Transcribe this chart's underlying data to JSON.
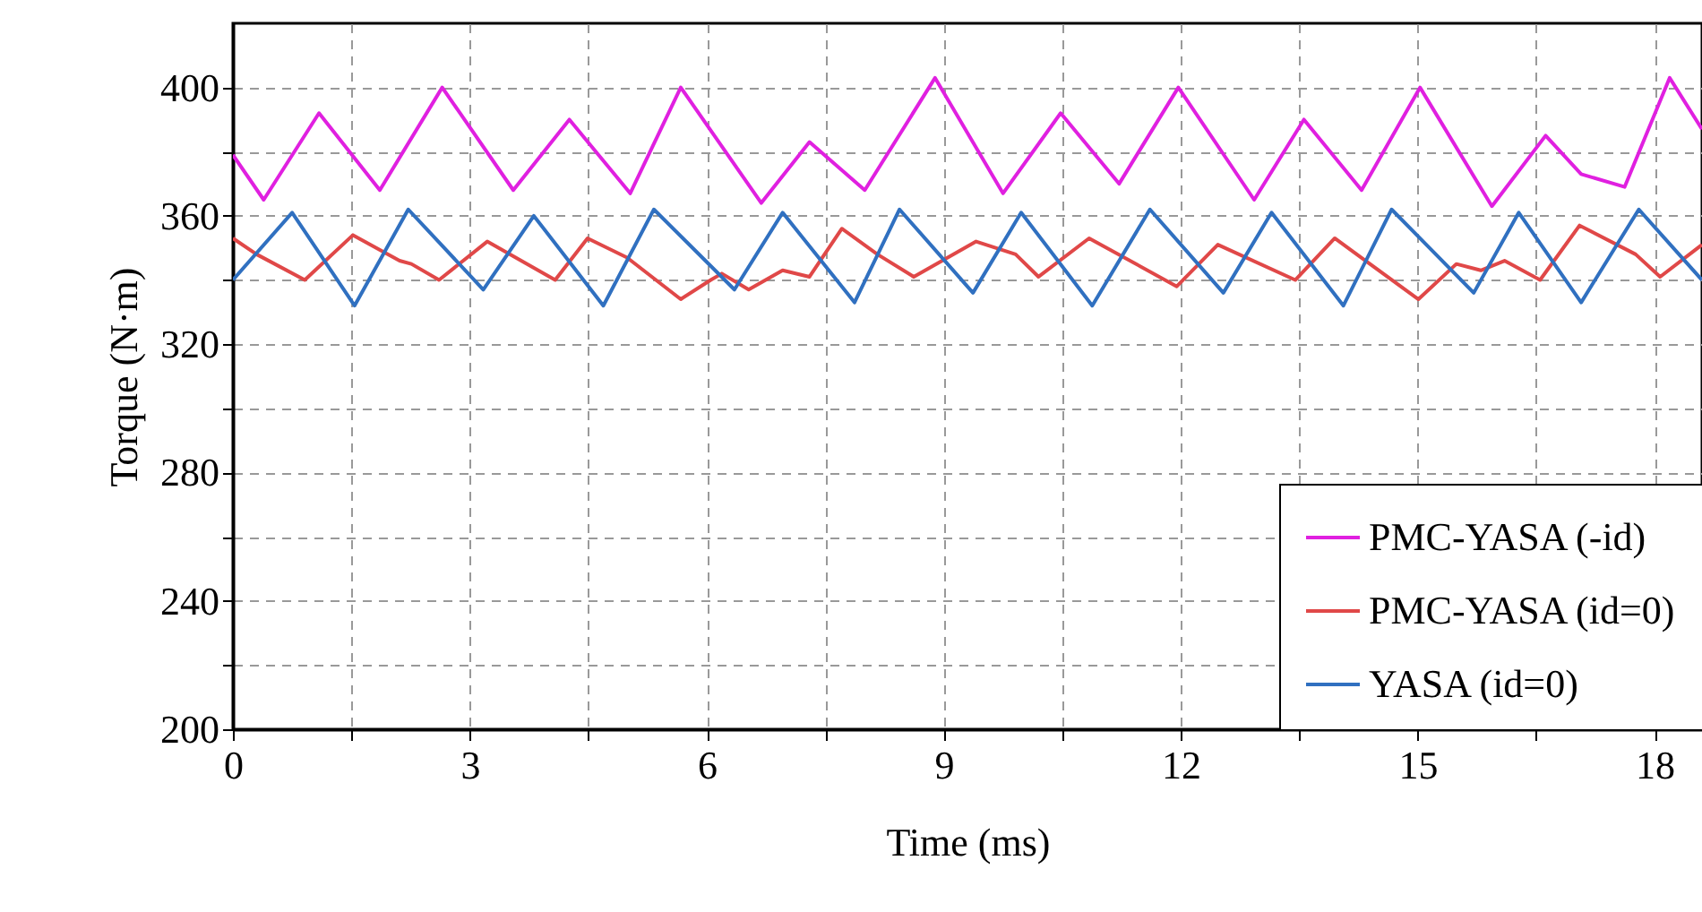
{
  "chart_data": {
    "type": "line",
    "xlabel": "Time (ms)",
    "ylabel": "Torque (N·m)",
    "xlim": [
      0,
      18.6
    ],
    "ylim": [
      200,
      420
    ],
    "xticks": [
      0,
      {
        "value": 1.5,
        "label": null
      },
      3,
      {
        "value": 4.5,
        "label": null
      },
      6,
      {
        "value": 7.5,
        "label": null
      },
      9,
      {
        "value": 10.5,
        "label": null
      },
      12,
      {
        "value": 13.5,
        "label": null
      },
      15,
      {
        "value": 16.5,
        "label": null
      },
      18
    ],
    "yticks": [
      200,
      {
        "value": 220,
        "label": null
      },
      240,
      {
        "value": 260,
        "label": null
      },
      280,
      {
        "value": 300,
        "label": null
      },
      320,
      {
        "value": 340,
        "label": null
      },
      360,
      {
        "value": 380,
        "label": null
      },
      400
    ],
    "grid": true,
    "legend": "bottom right",
    "line_style": "solid",
    "series": [
      {
        "name": "PMC-YASA (-id)",
        "color": "#e020e0",
        "x": [
          0,
          0.39,
          1.09,
          1.86,
          2.65,
          3.55,
          4.26,
          5.03,
          5.67,
          6.69,
          7.3,
          8.0,
          8.89,
          9.75,
          10.48,
          11.22,
          11.97,
          12.93,
          13.56,
          14.29,
          15.03,
          15.94,
          16.62,
          17.07,
          17.62,
          18.19,
          18.6
        ],
        "values": [
          379,
          365,
          392,
          368,
          400,
          368,
          390,
          367,
          400,
          364,
          383,
          368,
          403,
          367,
          392,
          370,
          400,
          365,
          390,
          368,
          400,
          363,
          385,
          373,
          369,
          403,
          387
        ]
      },
      {
        "name": "PMC-YASA (id=0)",
        "color": "#e04848",
        "x": [
          0,
          0.3,
          0.91,
          1.52,
          2.11,
          2.26,
          2.61,
          3.22,
          4.08,
          4.49,
          4.99,
          5.67,
          6.05,
          6.19,
          6.53,
          6.96,
          7.3,
          7.71,
          8.16,
          8.62,
          9.41,
          9.91,
          10.2,
          10.84,
          11.95,
          12.47,
          13.45,
          13.95,
          15.01,
          15.49,
          15.8,
          16.1,
          16.55,
          17.05,
          17.76,
          18.07,
          18.6
        ],
        "values": [
          353,
          348,
          340,
          354,
          346,
          345,
          340,
          352,
          340,
          353,
          347,
          334,
          340,
          342,
          337,
          343,
          341,
          356,
          348,
          341,
          352,
          348,
          341,
          353,
          338,
          351,
          340,
          353,
          334,
          345,
          343,
          346,
          340,
          357,
          348,
          341,
          351
        ]
      },
      {
        "name": "YASA (id=0)",
        "color": "#3070c0",
        "x": [
          0,
          0.75,
          1.54,
          2.22,
          3.17,
          3.81,
          4.69,
          5.33,
          6.35,
          6.96,
          7.87,
          8.44,
          9.37,
          9.98,
          10.88,
          11.61,
          12.54,
          13.15,
          14.06,
          14.67,
          15.71,
          16.28,
          17.07,
          17.8,
          18.6
        ],
        "values": [
          340,
          361,
          332,
          362,
          337,
          360,
          332,
          362,
          337,
          361,
          333,
          362,
          336,
          361,
          332,
          362,
          336,
          361,
          332,
          362,
          336,
          361,
          333,
          362,
          340
        ]
      }
    ]
  }
}
